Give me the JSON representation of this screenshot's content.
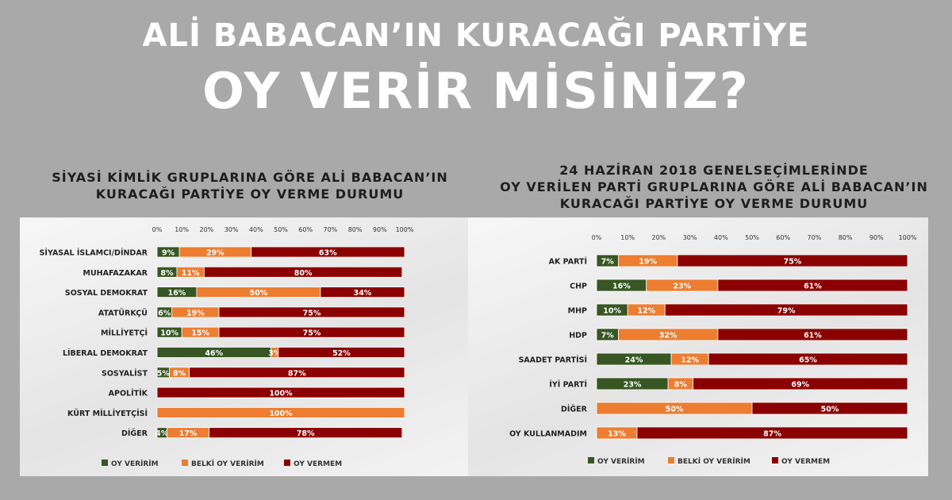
{
  "headline": {
    "line1": "ALİ BABACAN’IN KURACAĞI PARTİYE",
    "line2": "OY VERİR MİSİNİZ?"
  },
  "chart_data": [
    {
      "type": "bar",
      "orientation": "horizontal",
      "stacked": true,
      "title_lines": [
        "SİYASİ KİMLİK GRUPLARINA GÖRE ALİ BABACAN’IN",
        "KURACAĞI PARTİYE OY VERME DURUMU"
      ],
      "x_ticks": [
        "0%",
        "10%",
        "20%",
        "30%",
        "40%",
        "50%",
        "60%",
        "70%",
        "80%",
        "90%",
        "100%"
      ],
      "xlim": [
        0,
        100
      ],
      "legend_position": "bottom",
      "categories": [
        "SİYASAL İSLAMCI/DİNDAR",
        "MUHAFAZAKAR",
        "SOSYAL DEMOKRAT",
        "ATATÜRKÇÜ",
        "MİLLİYETÇİ",
        "LİBERAL DEMOKRAT",
        "SOSYALİST",
        "APOLİTİK",
        "KÜRT MİLLİYETÇİSİ",
        "DİĞER"
      ],
      "series": [
        {
          "name": "OY VERİRİM",
          "color": "#375623",
          "values": [
            9,
            8,
            16,
            6,
            10,
            46,
            5,
            0,
            0,
            4
          ]
        },
        {
          "name": "BELKİ OY VERİRİM",
          "color": "#ed7d31",
          "values": [
            29,
            11,
            50,
            19,
            15,
            3,
            8,
            0,
            100,
            17
          ]
        },
        {
          "name": "OY VERMEM",
          "color": "#8b0000",
          "values": [
            63,
            80,
            34,
            75,
            75,
            52,
            87,
            100,
            0,
            78
          ]
        }
      ]
    },
    {
      "type": "bar",
      "orientation": "horizontal",
      "stacked": true,
      "title_lines": [
        "24 HAZİRAN 2018 GENELSEÇİMLERİNDE",
        "OY VERİLEN PARTİ GRUPLARINA GÖRE ALİ BABACAN’IN",
        "KURACAĞI PARTİYE OY VERME DURUMU"
      ],
      "x_ticks": [
        "0%",
        "10%",
        "20%",
        "30%",
        "40%",
        "50%",
        "60%",
        "70%",
        "80%",
        "90%",
        "100%"
      ],
      "xlim": [
        0,
        100
      ],
      "legend_position": "bottom",
      "categories": [
        "AK PARTİ",
        "CHP",
        "MHP",
        "HDP",
        "SAADET PARTİSİ",
        "İYİ PARTİ",
        "DİĞER",
        "OY KULLANMADIM"
      ],
      "series": [
        {
          "name": "OY VERİRİM",
          "color": "#375623",
          "values": [
            7,
            16,
            10,
            7,
            24,
            23,
            0,
            0
          ]
        },
        {
          "name": "BELKİ OY VERİRİM",
          "color": "#ed7d31",
          "values": [
            19,
            23,
            12,
            32,
            12,
            8,
            50,
            13
          ]
        },
        {
          "name": "OY VERMEM",
          "color": "#8b0000",
          "values": [
            75,
            61,
            79,
            61,
            65,
            69,
            50,
            87
          ]
        }
      ]
    }
  ]
}
